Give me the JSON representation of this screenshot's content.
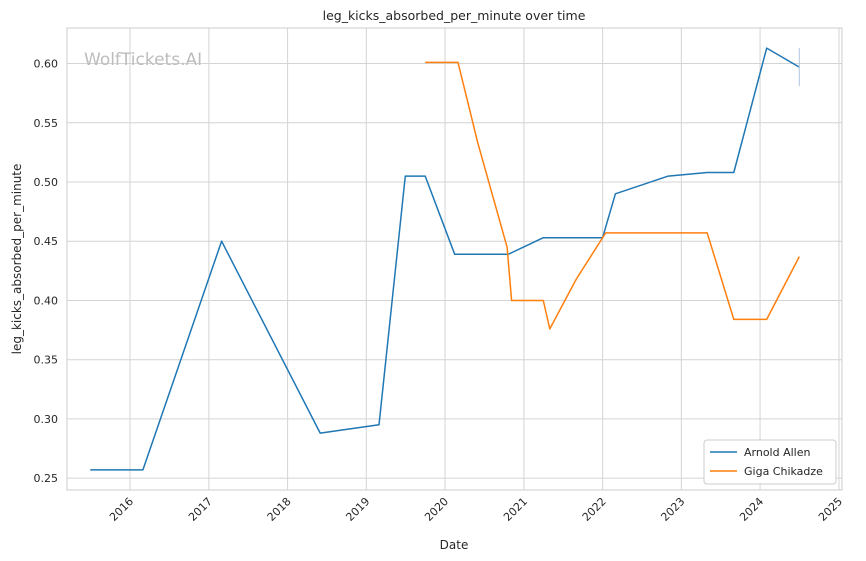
{
  "watermark": "WolfTickets.AI",
  "colors": {
    "arnold": "#1f77b4",
    "giga": "#ff7f0e",
    "grid": "#d4d4d4",
    "frame": "#cccccc"
  },
  "chart_data": {
    "type": "line",
    "title": "leg_kicks_absorbed_per_minute over time",
    "xlabel": "Date",
    "ylabel": "leg_kicks_absorbed_per_minute",
    "xlim": [
      "2015-03-15",
      "2025-01-15"
    ],
    "ylim": [
      0.24,
      0.63
    ],
    "x_ticks": [
      "2016",
      "2017",
      "2018",
      "2019",
      "2020",
      "2021",
      "2022",
      "2023",
      "2024",
      "2025"
    ],
    "y_ticks": [
      "0.25",
      "0.30",
      "0.35",
      "0.40",
      "0.45",
      "0.50",
      "0.55",
      "0.60"
    ],
    "grid": true,
    "legend_position": "bottom-right",
    "series": [
      {
        "name": "Arnold Allen",
        "color": "#1f77b4",
        "points": [
          [
            "2015-07-01",
            0.257
          ],
          [
            "2016-03-01",
            0.257
          ],
          [
            "2017-03-01",
            0.45
          ],
          [
            "2018-06-01",
            0.288
          ],
          [
            "2019-03-01",
            0.295
          ],
          [
            "2019-07-01",
            0.505
          ],
          [
            "2019-10-01",
            0.505
          ],
          [
            "2020-02-15",
            0.439
          ],
          [
            "2020-10-20",
            0.439
          ],
          [
            "2021-04-01",
            0.453
          ],
          [
            "2022-01-01",
            0.453
          ],
          [
            "2022-03-01",
            0.49
          ],
          [
            "2022-11-01",
            0.505
          ],
          [
            "2023-05-01",
            0.508
          ],
          [
            "2023-09-01",
            0.508
          ],
          [
            "2024-02-01",
            0.613
          ],
          [
            "2024-07-01",
            0.597
          ]
        ]
      },
      {
        "name": "Giga Chikadze",
        "color": "#ff7f0e",
        "points": [
          [
            "2019-10-01",
            0.601
          ],
          [
            "2020-03-01",
            0.601
          ],
          [
            "2020-06-01",
            0.533
          ],
          [
            "2020-10-15",
            0.445
          ],
          [
            "2020-11-05",
            0.4
          ],
          [
            "2021-04-01",
            0.4
          ],
          [
            "2021-05-01",
            0.376
          ],
          [
            "2021-09-01",
            0.418
          ],
          [
            "2022-01-15",
            0.457
          ],
          [
            "2023-05-01",
            0.457
          ],
          [
            "2023-09-01",
            0.384
          ],
          [
            "2024-02-01",
            0.384
          ],
          [
            "2024-07-01",
            0.437
          ]
        ]
      }
    ],
    "annotations": [
      {
        "type": "error-bar",
        "x": "2024-07-01",
        "y_range": [
          0.581,
          0.613
        ]
      }
    ]
  }
}
